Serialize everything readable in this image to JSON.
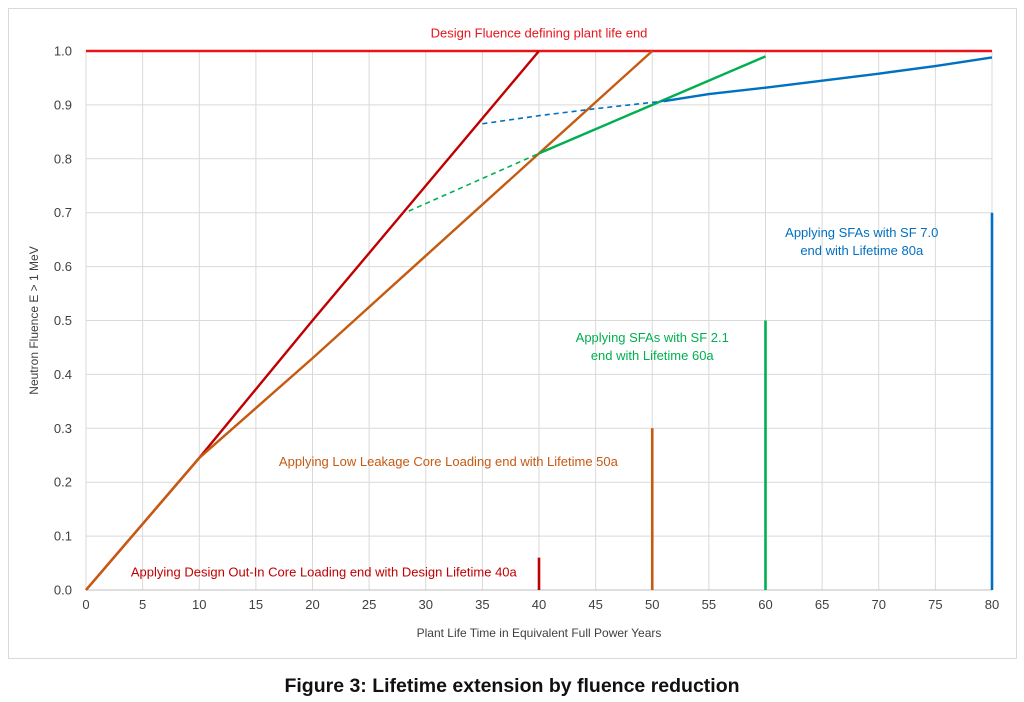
{
  "figure_caption": "Figure 3: Lifetime extension by fluence reduction",
  "chart_data": {
    "type": "line",
    "title": "",
    "xlabel": "Plant Life Time in Equivalent Full Power Years",
    "ylabel": "Neutron Fluence E > 1 MeV",
    "xlim": [
      0,
      80
    ],
    "ylim": [
      0,
      1.0
    ],
    "xticks": [
      "0",
      "5",
      "10",
      "15",
      "20",
      "25",
      "30",
      "35",
      "40",
      "45",
      "50",
      "55",
      "60",
      "65",
      "70",
      "75",
      "80"
    ],
    "yticks": [
      "0.0",
      "0.1",
      "0.2",
      "0.3",
      "0.4",
      "0.5",
      "0.6",
      "0.7",
      "0.8",
      "0.9",
      "1.0"
    ],
    "grid": true,
    "legend": "none",
    "colors": {
      "red": "#c00000",
      "brightred": "#e8141c",
      "orange": "#c55a11",
      "green": "#00b050",
      "blue": "#0070c0"
    },
    "series": [
      {
        "color": "red",
        "style": "solid",
        "x": [
          0,
          10,
          20,
          30,
          40
        ],
        "y": [
          0,
          0.245,
          0.5,
          0.75,
          1.0
        ]
      },
      {
        "color": "orange",
        "style": "solid",
        "x": [
          0,
          10,
          20,
          30,
          40,
          50
        ],
        "y": [
          0,
          0.245,
          0.43,
          0.62,
          0.81,
          1.0
        ]
      },
      {
        "color": "green",
        "style": "dashed",
        "x": [
          28.5,
          40
        ],
        "y": [
          0.703,
          0.81
        ]
      },
      {
        "color": "green",
        "style": "solid",
        "x": [
          40,
          45,
          50,
          55,
          60
        ],
        "y": [
          0.81,
          0.855,
          0.9,
          0.945,
          0.99
        ]
      },
      {
        "color": "blue",
        "style": "dashed",
        "x": [
          35,
          40,
          45,
          51
        ],
        "y": [
          0.865,
          0.88,
          0.893,
          0.907
        ]
      },
      {
        "color": "blue",
        "style": "solid",
        "x": [
          51,
          55,
          60,
          65,
          70,
          75,
          80
        ],
        "y": [
          0.907,
          0.92,
          0.932,
          0.945,
          0.958,
          0.972,
          0.988
        ]
      }
    ],
    "reference_lines": [
      {
        "name": "Design Fluence defining plant life end",
        "orientation": "horizontal",
        "y": 1.0,
        "color": "brightred"
      }
    ],
    "end_markers": [
      {
        "x": 40,
        "ymin": 0,
        "ymax": 0.06,
        "color": "red"
      },
      {
        "x": 50,
        "ymin": 0,
        "ymax": 0.3,
        "color": "orange"
      },
      {
        "x": 60,
        "ymin": 0,
        "ymax": 0.5,
        "color": "green"
      },
      {
        "x": 80,
        "ymin": 0,
        "ymax": 0.7,
        "color": "blue"
      }
    ],
    "annotations": [
      {
        "lines": [
          "Design Fluence defining plant life end"
        ],
        "x": 40,
        "y": 1.025,
        "color": "brightred"
      },
      {
        "lines": [
          "Applying Design Out-In Core Loading end with Design Lifetime 40a"
        ],
        "x": 21,
        "y": 0.025,
        "color": "red"
      },
      {
        "lines": [
          "Applying Low Leakage Core Loading end with  Lifetime 50a"
        ],
        "x": 32,
        "y": 0.23,
        "color": "orange"
      },
      {
        "lines": [
          "Applying SFAs with SF 2.1",
          "end with  Lifetime 60a"
        ],
        "x": 50,
        "y": 0.46,
        "color": "green"
      },
      {
        "lines": [
          "Applying SFAs with SF 7.0",
          "end with  Lifetime 80a"
        ],
        "x": 68.5,
        "y": 0.655,
        "color": "blue"
      }
    ]
  }
}
